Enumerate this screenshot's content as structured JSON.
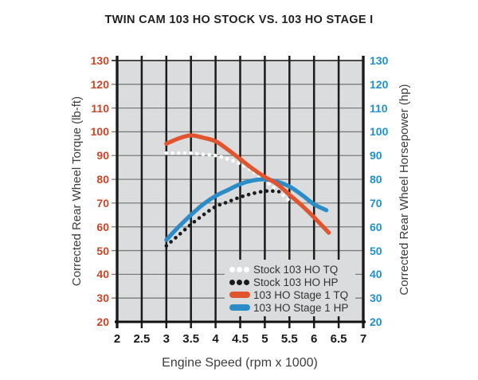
{
  "title": "TWIN CAM 103 HO STOCK VS. 103 HO STAGE I",
  "chart_data": {
    "type": "line",
    "title": "TWIN CAM 103 HO STOCK VS. 103 HO STAGE I",
    "x_axis": {
      "label": "Engine Speed (rpm x 1000)",
      "min": 2,
      "max": 7,
      "ticks": [
        "2",
        "2.5",
        "3",
        "3.5",
        "4",
        "4.5",
        "5",
        "5.5",
        "6",
        "6.5",
        "7"
      ],
      "tick_color": "#1a1a1a"
    },
    "y_axis_left": {
      "label": "Corrected Rear Wheel Torque (lb-ft)",
      "min": 20,
      "max": 130,
      "ticks": [
        130,
        120,
        110,
        100,
        90,
        80,
        70,
        60,
        50,
        40,
        30,
        20
      ],
      "tick_color": "#cb4527"
    },
    "y_axis_right": {
      "label": "Corrected Rear Wheel Horsepower (hp)",
      "min": 20,
      "max": 130,
      "ticks": [
        130,
        120,
        110,
        100,
        90,
        80,
        70,
        60,
        50,
        40,
        30,
        20
      ],
      "tick_color": "#2191c9"
    },
    "grid": {
      "plot_background": "#dbdcdd",
      "vline_color": "#1c1c1c",
      "hline_color": "#7c7c7c",
      "top_line_color": "#4a4a4a",
      "frame_color": "#111111"
    },
    "legend": {
      "position": "inside-bottom-right"
    },
    "series": [
      {
        "name": "stock-103-ho-tq",
        "label": "Stock 103 HO TQ",
        "style": "dotted",
        "color": "#ffffff",
        "points": [
          [
            3.0,
            91
          ],
          [
            3.25,
            91
          ],
          [
            3.5,
            91
          ],
          [
            3.75,
            90.5
          ],
          [
            4.0,
            90
          ],
          [
            4.25,
            88.5
          ],
          [
            4.5,
            86.5
          ],
          [
            4.75,
            83.5
          ],
          [
            5.0,
            79.5
          ],
          [
            5.25,
            75.5
          ],
          [
            5.5,
            71
          ]
        ]
      },
      {
        "name": "stock-103-ho-hp",
        "label": "Stock 103 HO HP",
        "style": "dotted",
        "color": "#1b1b1b",
        "points": [
          [
            3.0,
            52
          ],
          [
            3.25,
            56.5
          ],
          [
            3.5,
            61
          ],
          [
            3.75,
            65
          ],
          [
            4.0,
            68.5
          ],
          [
            4.25,
            70.5
          ],
          [
            4.5,
            72.5
          ],
          [
            4.75,
            74
          ],
          [
            5.0,
            75
          ],
          [
            5.2,
            75
          ],
          [
            5.4,
            74.5
          ]
        ]
      },
      {
        "name": "103-ho-stage-1-tq",
        "label": "103 HO Stage 1 TQ",
        "style": "solid",
        "color": "#e0542e",
        "points": [
          [
            3.0,
            95
          ],
          [
            3.25,
            97.2
          ],
          [
            3.5,
            98.5
          ],
          [
            3.75,
            97.5
          ],
          [
            4.0,
            96
          ],
          [
            4.25,
            92.5
          ],
          [
            4.5,
            88.5
          ],
          [
            4.75,
            84.5
          ],
          [
            5.0,
            81
          ],
          [
            5.25,
            78
          ],
          [
            5.5,
            73.5
          ],
          [
            5.75,
            69
          ],
          [
            6.0,
            64
          ],
          [
            6.3,
            57.5
          ]
        ]
      },
      {
        "name": "103-ho-stage-1-hp",
        "label": "103 HO Stage 1 HP",
        "style": "solid",
        "color": "#2b8cc7",
        "points": [
          [
            3.0,
            54.5
          ],
          [
            3.25,
            60
          ],
          [
            3.5,
            65
          ],
          [
            3.75,
            69.5
          ],
          [
            4.0,
            73
          ],
          [
            4.25,
            75.5
          ],
          [
            4.5,
            78
          ],
          [
            4.75,
            79.5
          ],
          [
            5.0,
            80
          ],
          [
            5.25,
            79
          ],
          [
            5.5,
            77
          ],
          [
            5.75,
            73.5
          ],
          [
            6.0,
            69.5
          ],
          [
            6.25,
            67
          ]
        ]
      }
    ]
  }
}
